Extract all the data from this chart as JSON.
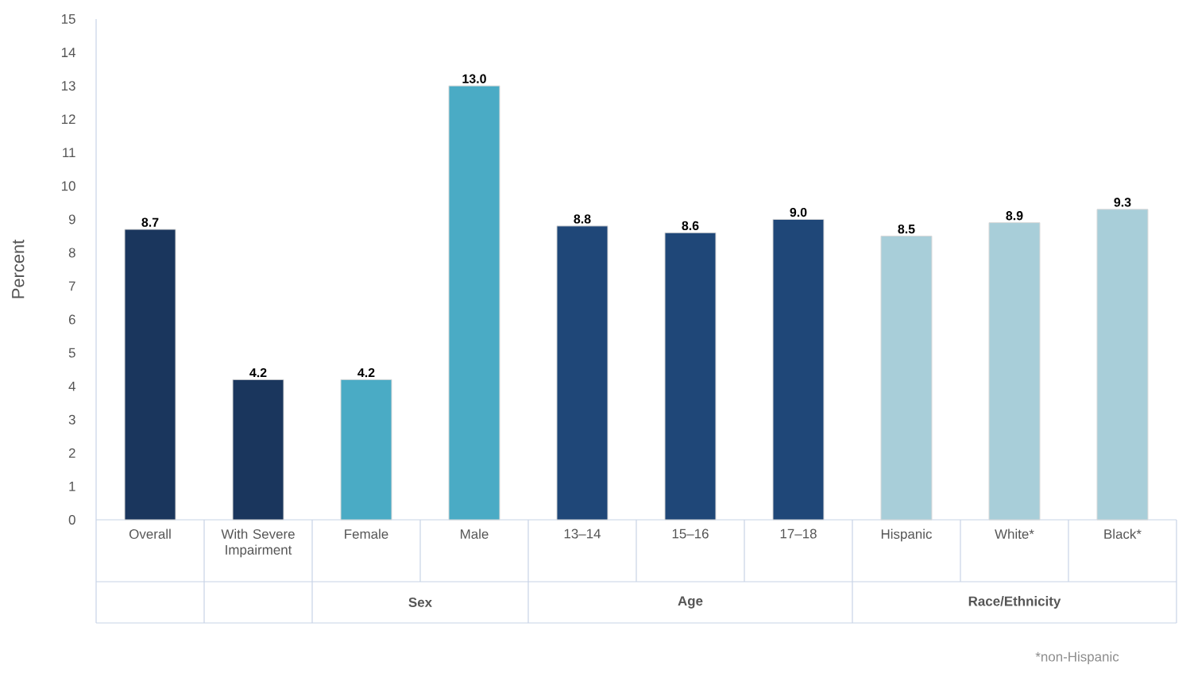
{
  "chart_data": {
    "type": "bar",
    "ylabel": "Percent",
    "categories": [
      "Overall",
      "With Severe Impairment",
      "Female",
      "Male",
      "13–14",
      "15–16",
      "17–18",
      "Hispanic",
      "White*",
      "Black*"
    ],
    "values": [
      8.7,
      4.2,
      4.2,
      13.0,
      8.8,
      8.6,
      9.0,
      8.5,
      8.9,
      9.3
    ],
    "colors": [
      "#1a365d",
      "#1a365d",
      "#4aabc5",
      "#4aabc5",
      "#1f4778",
      "#1f4778",
      "#1f4778",
      "#a8ced9",
      "#a8ced9",
      "#a8ced9"
    ],
    "value_labels": [
      "8.7",
      "4.2",
      "4.2",
      "13.0",
      "8.8",
      "8.6",
      "9.0",
      "8.5",
      "8.9",
      "9.3"
    ],
    "ylim": [
      0,
      15
    ],
    "yticks": [
      0,
      1,
      2,
      3,
      4,
      5,
      6,
      7,
      8,
      9,
      10,
      11,
      12,
      13,
      14,
      15
    ],
    "grid": false,
    "annotations": [
      "Sex",
      "Age",
      "Race/Ethnicity",
      "*non-Hispanic"
    ]
  }
}
